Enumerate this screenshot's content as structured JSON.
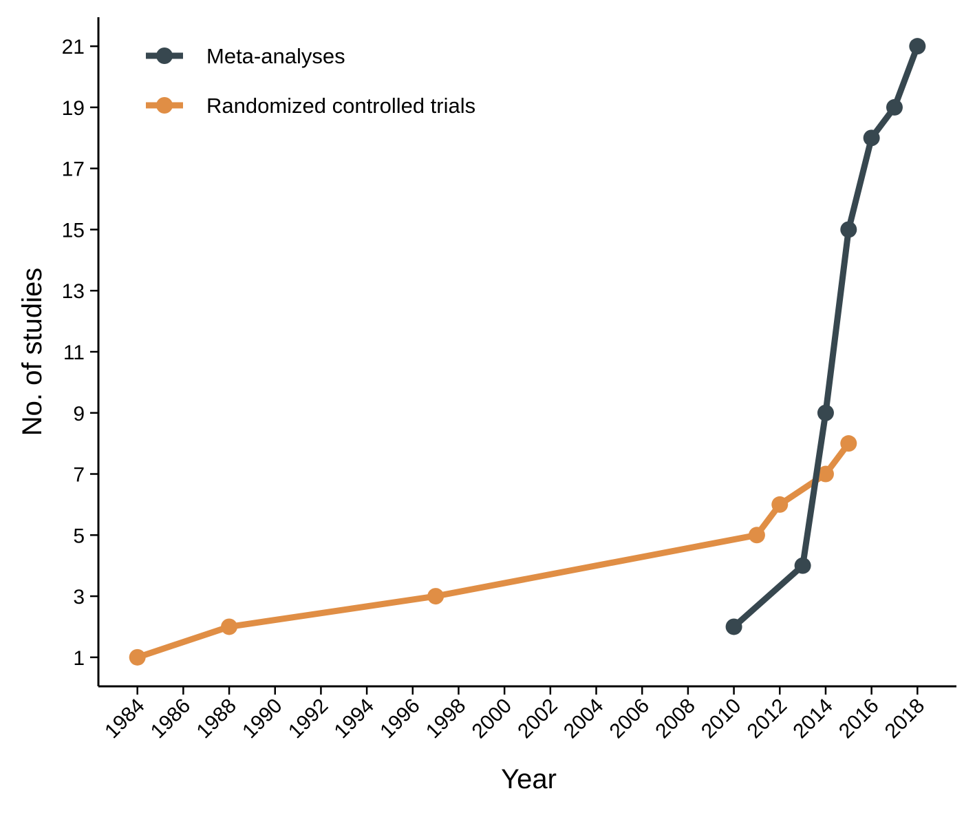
{
  "chart_data": {
    "type": "line",
    "title": "",
    "xlabel": "Year",
    "ylabel": "No. of studies",
    "xlim": [
      1982.3,
      2019.7
    ],
    "ylim": [
      0.05,
      21.95
    ],
    "x_ticks": [
      1984,
      1986,
      1988,
      1990,
      1992,
      1994,
      1996,
      1998,
      2000,
      2002,
      2004,
      2006,
      2008,
      2010,
      2012,
      2014,
      2016,
      2018
    ],
    "y_ticks": [
      1,
      3,
      5,
      7,
      9,
      11,
      13,
      15,
      17,
      19,
      21
    ],
    "grid": false,
    "legend_position": "top-left",
    "series": [
      {
        "name": "Meta-analyses",
        "color": "#37474F",
        "points": [
          {
            "x": 2010,
            "y": 2
          },
          {
            "x": 2013,
            "y": 4
          },
          {
            "x": 2014,
            "y": 9
          },
          {
            "x": 2015,
            "y": 15
          },
          {
            "x": 2016,
            "y": 18
          },
          {
            "x": 2017,
            "y": 19
          },
          {
            "x": 2018,
            "y": 21
          }
        ]
      },
      {
        "name": "Randomized controlled trials",
        "color": "#E08E45",
        "points": [
          {
            "x": 1984,
            "y": 1
          },
          {
            "x": 1988,
            "y": 2
          },
          {
            "x": 1997,
            "y": 3
          },
          {
            "x": 2011,
            "y": 5
          },
          {
            "x": 2012,
            "y": 6
          },
          {
            "x": 2014,
            "y": 7
          },
          {
            "x": 2015,
            "y": 8
          }
        ]
      }
    ]
  }
}
